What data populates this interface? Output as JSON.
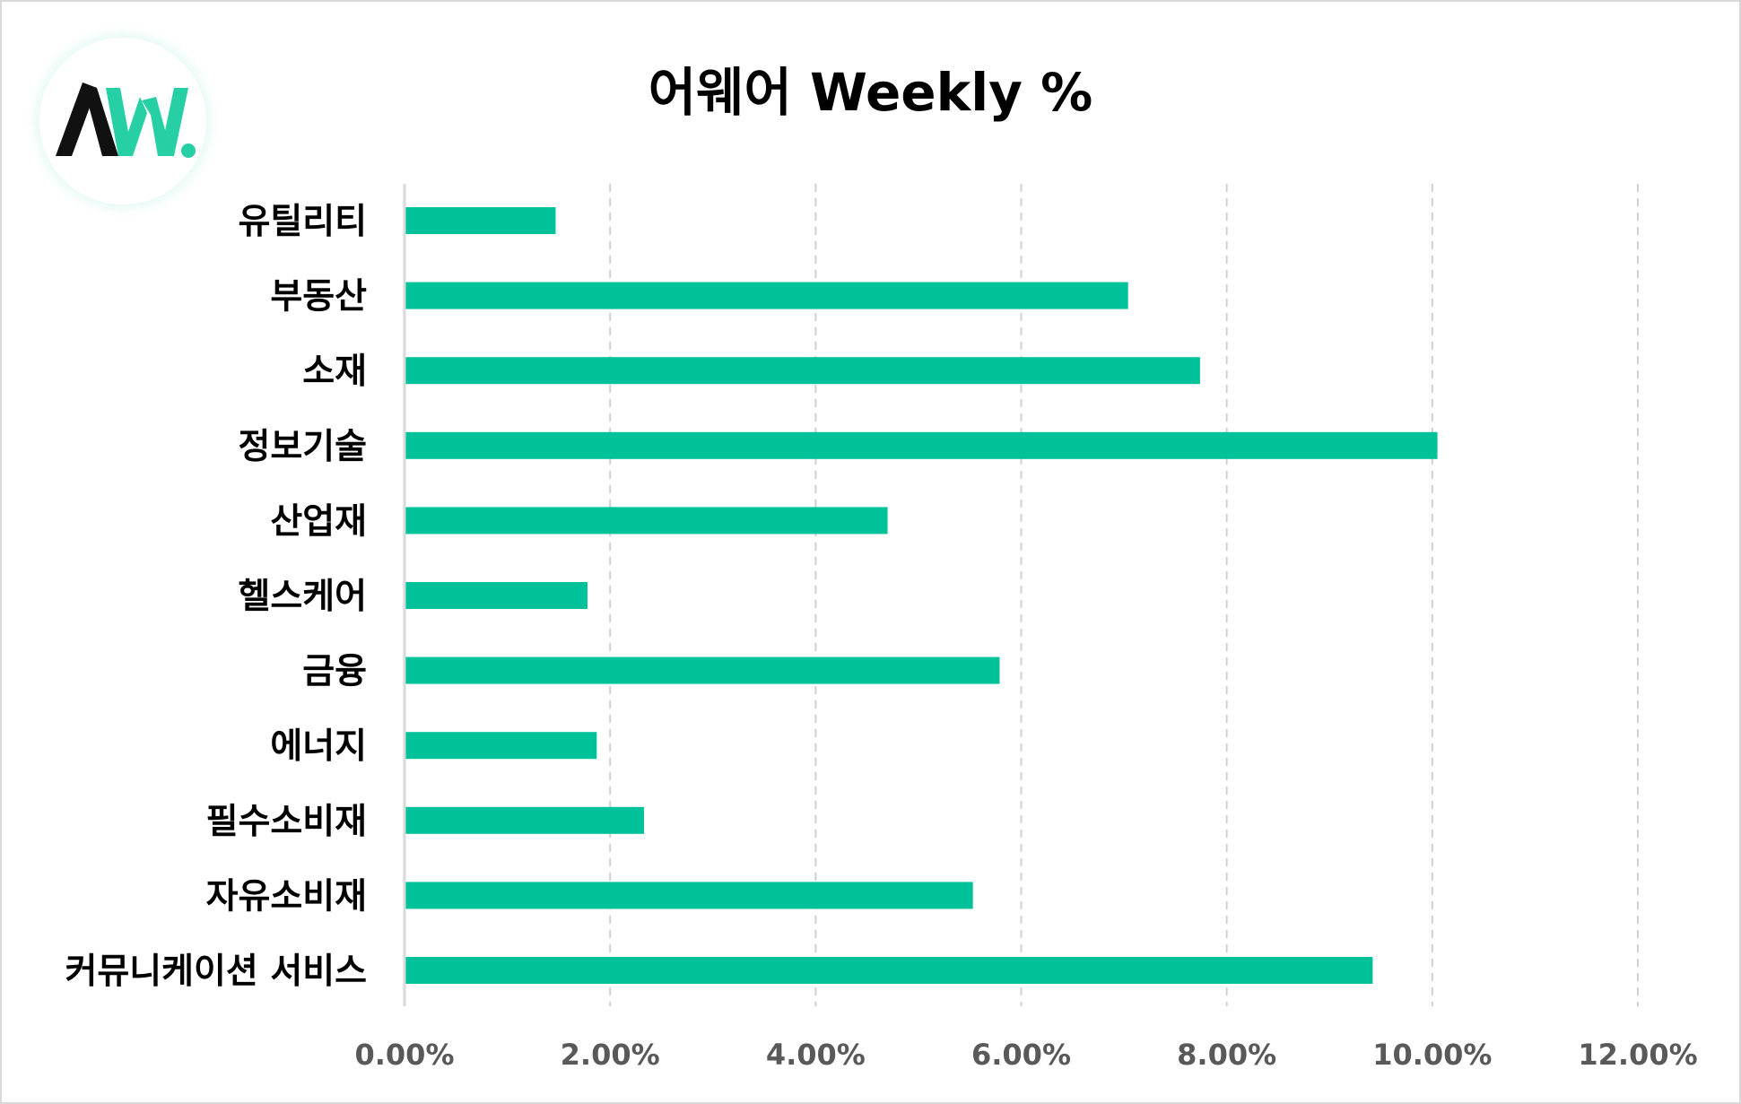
{
  "title": "어웨어 Weekly %",
  "logo": {
    "icon": "aw-logo-icon",
    "colors": {
      "dark": "#111111",
      "accent": "#26d0a4"
    }
  },
  "colors": {
    "bar": "#00c29a",
    "grid": "#d0d0d0",
    "axis": "#d9d9d9",
    "tick_label": "#595959"
  },
  "chart_data": {
    "type": "bar",
    "orientation": "horizontal",
    "title": "어웨어 Weekly %",
    "categories": [
      "유틸리티",
      "부동산",
      "소재",
      "정보기술",
      "산업재",
      "헬스케어",
      "금융",
      "에너지",
      "필수소비재",
      "자유소비재",
      "커뮤니케이션 서비스"
    ],
    "values": [
      1.47,
      7.04,
      7.74,
      10.05,
      4.7,
      1.78,
      5.79,
      1.87,
      2.33,
      5.53,
      9.42
    ],
    "xlim": [
      0,
      12
    ],
    "x_ticks": [
      0,
      2,
      4,
      6,
      8,
      10,
      12
    ],
    "x_tick_labels": [
      "0.00%",
      "2.00%",
      "4.00%",
      "6.00%",
      "8.00%",
      "10.00%",
      "12.00%"
    ],
    "grid": "vertical dashed",
    "legend": "none"
  }
}
